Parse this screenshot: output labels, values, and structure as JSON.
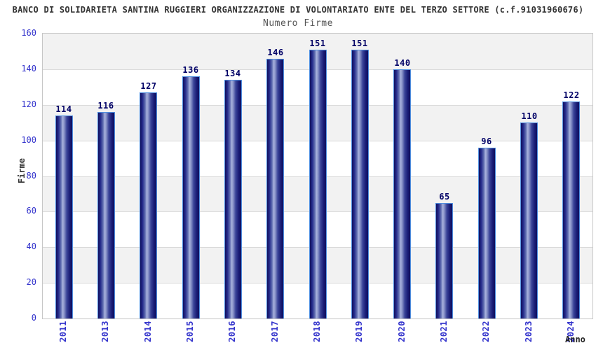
{
  "header": {
    "title": "BANCO DI SOLIDARIETA SANTINA RUGGIERI ORGANIZZAZIONE DI VOLONTARIATO ENTE DEL TERZO SETTORE (c.f.91031960676)",
    "subtitle": "Numero Firme"
  },
  "chart_data": {
    "type": "bar",
    "title": "Numero Firme",
    "categories": [
      "2011",
      "2013",
      "2014",
      "2015",
      "2016",
      "2017",
      "2018",
      "2019",
      "2020",
      "2021",
      "2022",
      "2023",
      "2024"
    ],
    "values": [
      114,
      116,
      127,
      136,
      134,
      146,
      151,
      151,
      140,
      65,
      96,
      110,
      122
    ],
    "xlabel": "Anno",
    "ylabel": "Firme",
    "ylim": [
      0,
      160
    ],
    "ytick_step": 20,
    "yticks": [
      0,
      20,
      40,
      60,
      80,
      100,
      120,
      140,
      160
    ],
    "grid": "horizontal alternating bands",
    "legend": "none",
    "bar_value_labels_shown": true
  },
  "colors": {
    "bar_dark": "#10105e",
    "bar_light": "#a9b3de",
    "bar_border": "#4f8fe0",
    "value_label": "#000066",
    "tick_label": "#3333cc",
    "title_text": "#333333",
    "subtitle_text": "#555555",
    "band_gray": "#f2f2f2",
    "band_white": "#ffffff",
    "grid_line": "#dadada",
    "frame": "#c6c6c6"
  }
}
